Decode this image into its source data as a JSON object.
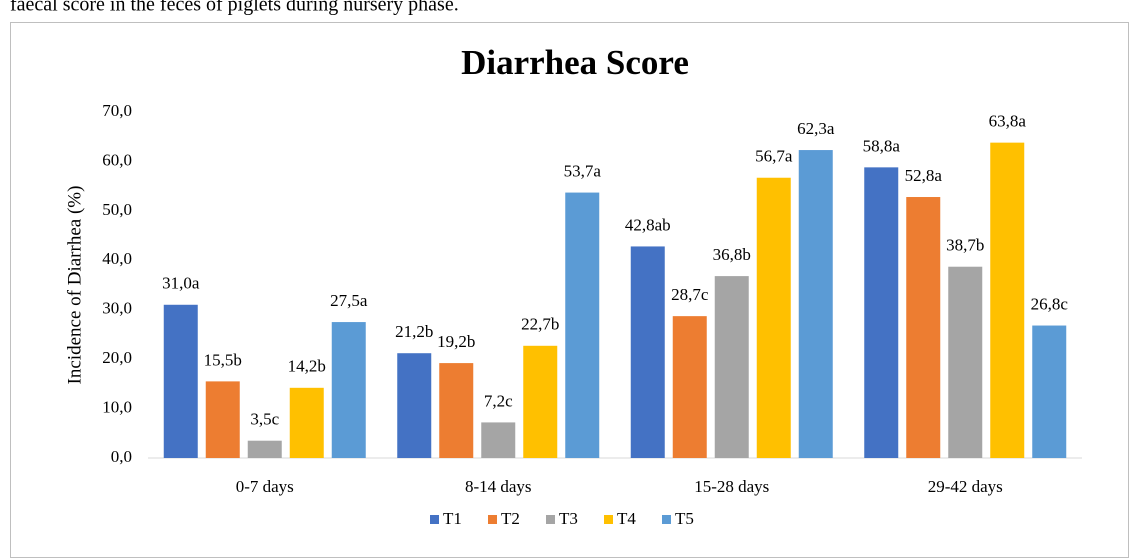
{
  "caption": "faecal score in the feces of piglets during nursery phase.",
  "chart_data": {
    "type": "bar",
    "title": "Diarrhea Score",
    "y_label": "Incidence of Diarrhea (%)",
    "categories": [
      "0-7 days",
      "8-14 days",
      "15-28 days",
      "29-42 days"
    ],
    "series": [
      {
        "name": "T1",
        "color": "#4472c4",
        "values": [
          31.0,
          21.2,
          42.8,
          58.8
        ],
        "value_labels": [
          "31,0a",
          "21,2b",
          "42,8ab",
          "58,8a"
        ]
      },
      {
        "name": "T2",
        "color": "#ed7d31",
        "values": [
          15.5,
          19.2,
          28.7,
          52.8
        ],
        "value_labels": [
          "15,5b",
          "19,2b",
          "28,7c",
          "52,8a"
        ]
      },
      {
        "name": "T3",
        "color": "#a5a5a5",
        "values": [
          3.5,
          7.2,
          36.8,
          38.7
        ],
        "value_labels": [
          "3,5c",
          "7,2c",
          "36,8b",
          "38,7b"
        ]
      },
      {
        "name": "T4",
        "color": "#ffc000",
        "values": [
          14.2,
          22.7,
          56.7,
          63.8
        ],
        "value_labels": [
          "14,2b",
          "22,7b",
          "56,7a",
          "63,8a"
        ]
      },
      {
        "name": "T5",
        "color": "#5b9bd5",
        "values": [
          27.5,
          53.7,
          62.3,
          26.8
        ],
        "value_labels": [
          "27,5a",
          "53,7a",
          "62,3a",
          "26,8c"
        ]
      }
    ],
    "ylim": [
      0,
      70
    ],
    "yticks": [
      {
        "value": 0,
        "label": "0,0"
      },
      {
        "value": 10,
        "label": "10,0"
      },
      {
        "value": 20,
        "label": "20,0"
      },
      {
        "value": 30,
        "label": "30,0"
      },
      {
        "value": 40,
        "label": "40,0"
      },
      {
        "value": 50,
        "label": "50,0"
      },
      {
        "value": 60,
        "label": "60,0"
      },
      {
        "value": 70,
        "label": "70,0"
      }
    ],
    "grid": false,
    "legend": "bottom"
  }
}
